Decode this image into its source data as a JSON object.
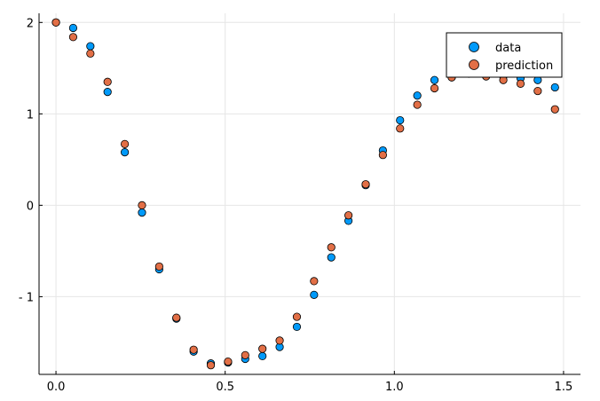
{
  "chart_data": {
    "type": "scatter",
    "xlim": [
      -0.05,
      1.55
    ],
    "ylim": [
      -1.85,
      2.1
    ],
    "xticks": [
      0.0,
      0.5,
      1.0,
      1.5
    ],
    "xtick_labels": [
      "0.0",
      "0.5",
      "1.0",
      "1.5"
    ],
    "yticks": [
      -1,
      0,
      1,
      2
    ],
    "ytick_labels": [
      "- 1",
      "0",
      "1",
      "2"
    ],
    "grid": true,
    "legend_position": "top-right",
    "series": [
      {
        "name": "data",
        "color": "#009AFA",
        "x": [
          0.0,
          0.0508,
          0.1017,
          0.1525,
          0.2034,
          0.2542,
          0.3051,
          0.3559,
          0.4068,
          0.4576,
          0.5085,
          0.5593,
          0.6102,
          0.661,
          0.7119,
          0.7627,
          0.8136,
          0.8644,
          0.9153,
          0.9661,
          1.0169,
          1.0678,
          1.1186,
          1.1695,
          1.2203,
          1.2712,
          1.322,
          1.3729,
          1.4237,
          1.4746
        ],
        "y": [
          2.0,
          1.94,
          1.74,
          1.24,
          0.58,
          -0.08,
          -0.7,
          -1.24,
          -1.6,
          -1.73,
          -1.72,
          -1.68,
          -1.65,
          -1.55,
          -1.33,
          -0.98,
          -0.57,
          -0.17,
          0.22,
          0.6,
          0.93,
          1.2,
          1.37,
          1.4,
          1.46,
          1.44,
          1.41,
          1.39,
          1.37,
          1.29
        ]
      },
      {
        "name": "prediction",
        "color": "#E26F46",
        "x": [
          0.0,
          0.0508,
          0.1017,
          0.1525,
          0.2034,
          0.2542,
          0.3051,
          0.3559,
          0.4068,
          0.4576,
          0.5085,
          0.5593,
          0.6102,
          0.661,
          0.7119,
          0.7627,
          0.8136,
          0.8644,
          0.9153,
          0.9661,
          1.0169,
          1.0678,
          1.1186,
          1.1695,
          1.2203,
          1.2712,
          1.322,
          1.3729,
          1.4237,
          1.4746
        ],
        "y": [
          2.0,
          1.84,
          1.66,
          1.35,
          0.67,
          0.0,
          -0.67,
          -1.23,
          -1.58,
          -1.75,
          -1.71,
          -1.64,
          -1.57,
          -1.48,
          -1.22,
          -0.83,
          -0.46,
          -0.11,
          0.23,
          0.55,
          0.84,
          1.1,
          1.28,
          1.4,
          1.44,
          1.41,
          1.37,
          1.33,
          1.25,
          1.05
        ]
      }
    ]
  }
}
